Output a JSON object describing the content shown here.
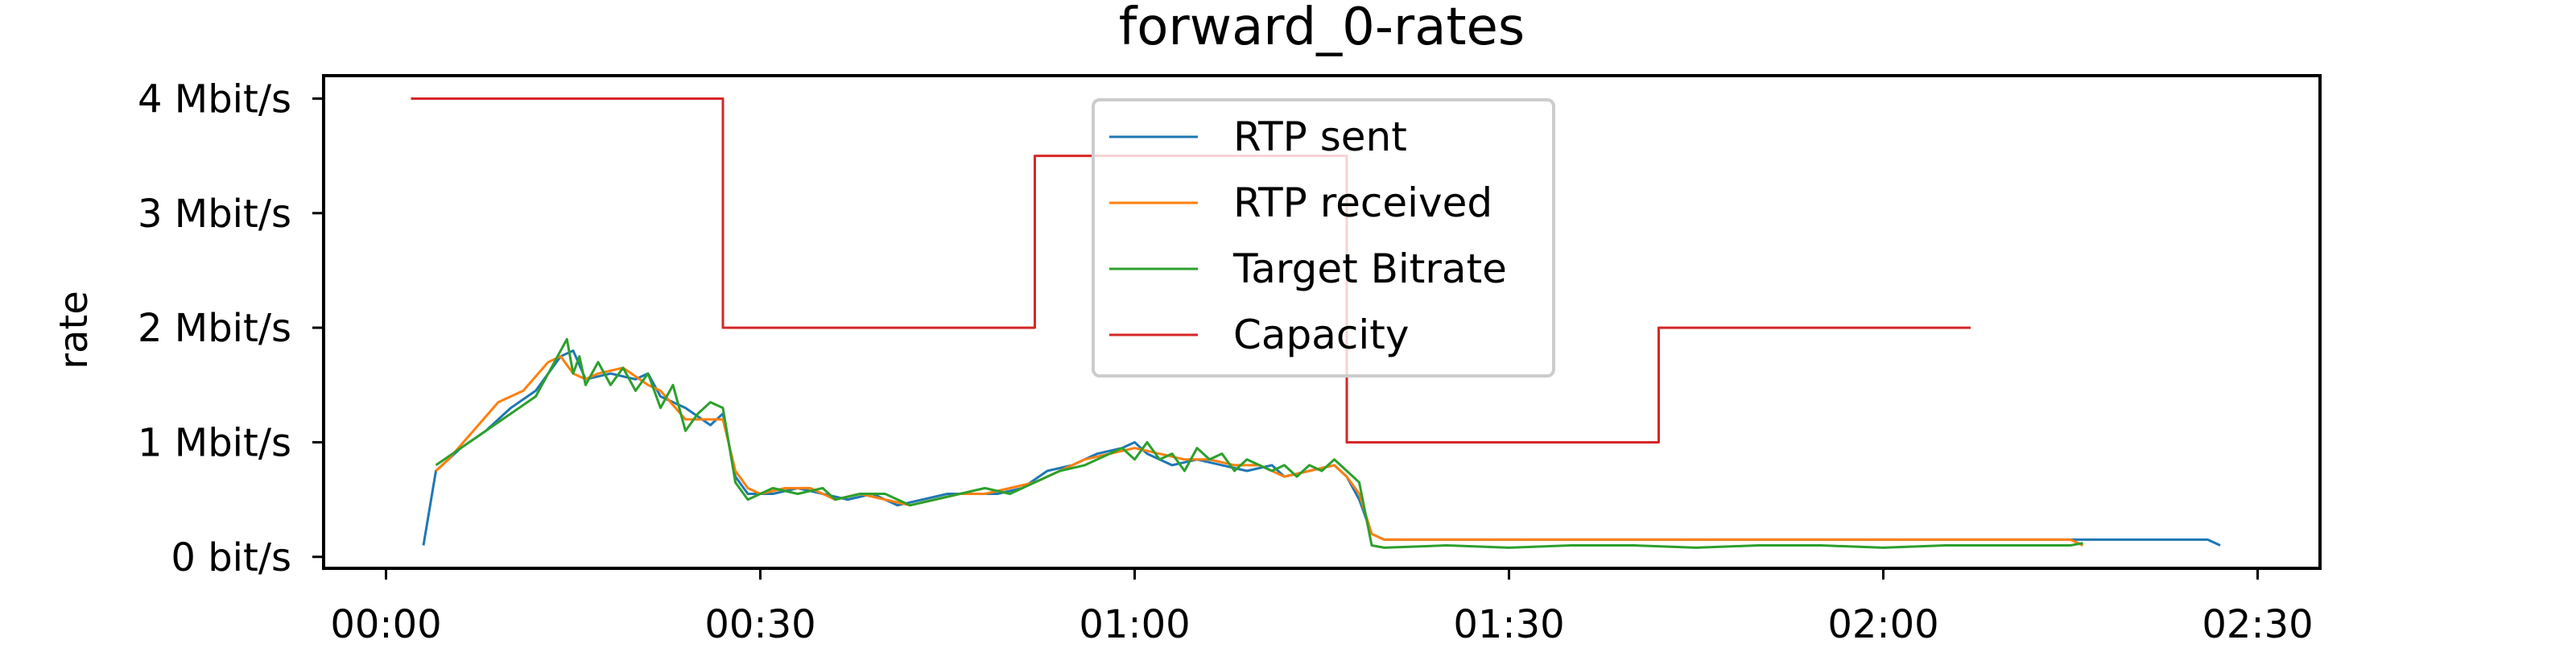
{
  "chart_data": {
    "type": "line",
    "title": "forward_0-rates",
    "xlabel": "",
    "ylabel": "rate",
    "x_unit": "seconds",
    "xlim": [
      -5,
      155
    ],
    "ylim": [
      -0.1,
      4.2
    ],
    "grid": false,
    "legend_position": "top-center",
    "x_ticks": [
      {
        "value": 0,
        "label": "00:00"
      },
      {
        "value": 30,
        "label": "00:30"
      },
      {
        "value": 60,
        "label": "01:00"
      },
      {
        "value": 90,
        "label": "01:30"
      },
      {
        "value": 120,
        "label": "02:00"
      },
      {
        "value": 150,
        "label": "02:30"
      }
    ],
    "y_ticks": [
      {
        "value": 0,
        "label": "0 bit/s"
      },
      {
        "value": 1,
        "label": "1 Mbit/s"
      },
      {
        "value": 2,
        "label": "2 Mbit/s"
      },
      {
        "value": 3,
        "label": "3 Mbit/s"
      },
      {
        "value": 4,
        "label": "4 Mbit/s"
      }
    ],
    "series": [
      {
        "name": "RTP sent",
        "color": "#1f77b4",
        "x": [
          3,
          4,
          5,
          6,
          8,
          10,
          12,
          14,
          15,
          16,
          18,
          20,
          21,
          22,
          24,
          26,
          27,
          28,
          29,
          30,
          31,
          33,
          35,
          37,
          39,
          41,
          43,
          45,
          47,
          49,
          51,
          53,
          55,
          57,
          59,
          60,
          61,
          63,
          65,
          67,
          69,
          71,
          72,
          74,
          76,
          77,
          78,
          79,
          80,
          84,
          88,
          92,
          96,
          100,
          104,
          108,
          112,
          116,
          120,
          124,
          128,
          132,
          136,
          140,
          142,
          144,
          146,
          147
        ],
        "values": [
          0.1,
          0.75,
          0.85,
          0.95,
          1.1,
          1.3,
          1.45,
          1.75,
          1.8,
          1.55,
          1.6,
          1.55,
          1.6,
          1.4,
          1.3,
          1.15,
          1.25,
          0.7,
          0.55,
          0.55,
          0.55,
          0.6,
          0.55,
          0.5,
          0.55,
          0.45,
          0.5,
          0.55,
          0.55,
          0.55,
          0.6,
          0.75,
          0.8,
          0.9,
          0.95,
          1.0,
          0.9,
          0.8,
          0.85,
          0.8,
          0.75,
          0.8,
          0.7,
          0.75,
          0.8,
          0.7,
          0.5,
          0.2,
          0.15,
          0.15,
          0.15,
          0.15,
          0.15,
          0.15,
          0.15,
          0.15,
          0.15,
          0.15,
          0.15,
          0.15,
          0.15,
          0.15,
          0.15,
          0.15,
          0.15,
          0.15,
          0.15,
          0.1
        ]
      },
      {
        "name": "RTP received",
        "color": "#ff7f0e",
        "x": [
          4,
          5,
          7,
          9,
          11,
          13,
          14,
          15,
          16,
          17,
          19,
          21,
          22,
          24,
          26,
          27,
          28,
          29,
          30,
          32,
          34,
          36,
          38,
          40,
          42,
          44,
          46,
          48,
          50,
          52,
          54,
          56,
          58,
          60,
          62,
          64,
          66,
          68,
          70,
          72,
          74,
          76,
          77,
          78,
          79,
          80,
          85,
          90,
          95,
          100,
          105,
          110,
          115,
          120,
          125,
          130,
          135,
          136
        ],
        "values": [
          0.75,
          0.85,
          1.1,
          1.35,
          1.45,
          1.7,
          1.75,
          1.6,
          1.55,
          1.6,
          1.65,
          1.5,
          1.45,
          1.2,
          1.2,
          1.2,
          0.75,
          0.6,
          0.55,
          0.6,
          0.6,
          0.5,
          0.55,
          0.5,
          0.45,
          0.5,
          0.55,
          0.55,
          0.6,
          0.65,
          0.75,
          0.85,
          0.9,
          0.95,
          0.9,
          0.85,
          0.85,
          0.8,
          0.8,
          0.7,
          0.75,
          0.8,
          0.7,
          0.55,
          0.2,
          0.15,
          0.15,
          0.15,
          0.15,
          0.15,
          0.15,
          0.15,
          0.15,
          0.15,
          0.15,
          0.15,
          0.15,
          0.1
        ]
      },
      {
        "name": "Target Bitrate",
        "color": "#2ca02c",
        "x": [
          4,
          6,
          8,
          10,
          12,
          13,
          14,
          14.5,
          15,
          15.5,
          16,
          17,
          18,
          19,
          20,
          21,
          22,
          23,
          24,
          25,
          26,
          27,
          28,
          29,
          31,
          33,
          35,
          36,
          38,
          40,
          42,
          44,
          46,
          48,
          50,
          52,
          54,
          56,
          58,
          59,
          60,
          61,
          62,
          63,
          64,
          65,
          66,
          67,
          68,
          69,
          70,
          71,
          72,
          73,
          74,
          75,
          76,
          77,
          78,
          79,
          80,
          85,
          90,
          95,
          100,
          105,
          110,
          115,
          120,
          125,
          130,
          135,
          136
        ],
        "values": [
          0.8,
          0.95,
          1.1,
          1.25,
          1.4,
          1.6,
          1.8,
          1.9,
          1.6,
          1.75,
          1.5,
          1.7,
          1.5,
          1.65,
          1.45,
          1.6,
          1.3,
          1.5,
          1.1,
          1.25,
          1.35,
          1.3,
          0.65,
          0.5,
          0.6,
          0.55,
          0.6,
          0.5,
          0.55,
          0.55,
          0.45,
          0.5,
          0.55,
          0.6,
          0.55,
          0.65,
          0.75,
          0.8,
          0.9,
          0.95,
          0.85,
          1.0,
          0.85,
          0.9,
          0.75,
          0.95,
          0.85,
          0.9,
          0.75,
          0.85,
          0.8,
          0.75,
          0.8,
          0.7,
          0.8,
          0.75,
          0.85,
          0.75,
          0.65,
          0.1,
          0.08,
          0.1,
          0.08,
          0.1,
          0.1,
          0.08,
          0.1,
          0.1,
          0.08,
          0.1,
          0.1,
          0.1,
          0.12
        ]
      },
      {
        "name": "Capacity",
        "color": "#d62728",
        "step": true,
        "x": [
          2,
          27,
          52,
          77,
          102,
          127
        ],
        "values": [
          4.0,
          2.0,
          3.5,
          1.0,
          2.0,
          2.0
        ]
      }
    ]
  }
}
